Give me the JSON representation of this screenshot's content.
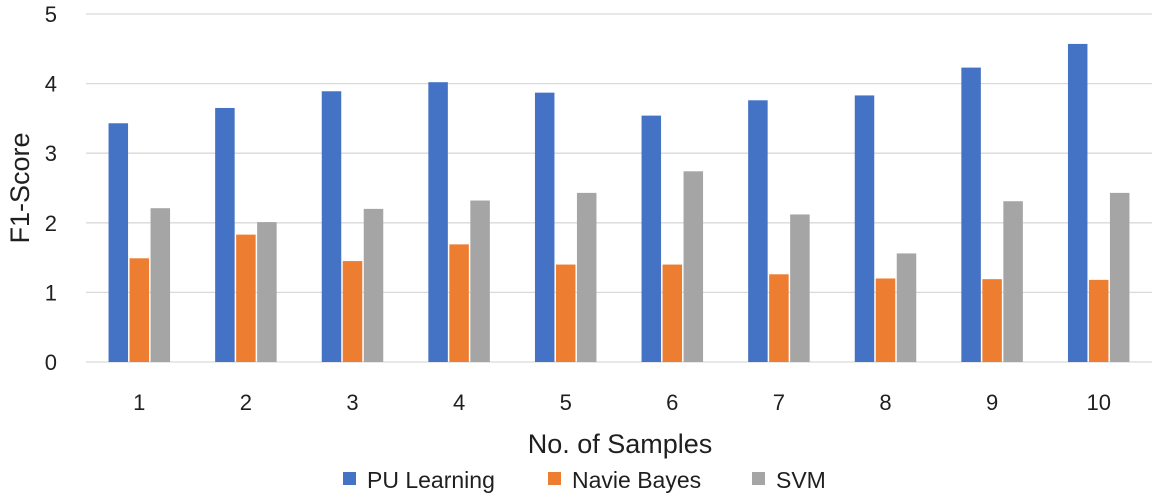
{
  "chart_data": {
    "type": "bar",
    "title": "",
    "xlabel": "No. of Samples",
    "ylabel": "F1-Score",
    "ylim": [
      0,
      5
    ],
    "yticks": [
      0,
      1,
      2,
      3,
      4,
      5
    ],
    "grid": true,
    "legend_position": "bottom",
    "categories": [
      "1",
      "2",
      "3",
      "4",
      "5",
      "6",
      "7",
      "8",
      "9",
      "10"
    ],
    "series": [
      {
        "name": "PU Learning",
        "color": "#4472C4",
        "values": [
          3.43,
          3.65,
          3.89,
          4.02,
          3.87,
          3.54,
          3.76,
          3.83,
          4.23,
          4.57
        ]
      },
      {
        "name": "Navie Bayes",
        "color": "#ED7D31",
        "values": [
          1.49,
          1.83,
          1.45,
          1.69,
          1.4,
          1.4,
          1.26,
          1.2,
          1.19,
          1.18
        ]
      },
      {
        "name": "SVM",
        "color": "#A5A5A5",
        "values": [
          2.21,
          2.01,
          2.2,
          2.32,
          2.43,
          2.74,
          2.12,
          1.56,
          2.31,
          2.43
        ]
      }
    ]
  }
}
